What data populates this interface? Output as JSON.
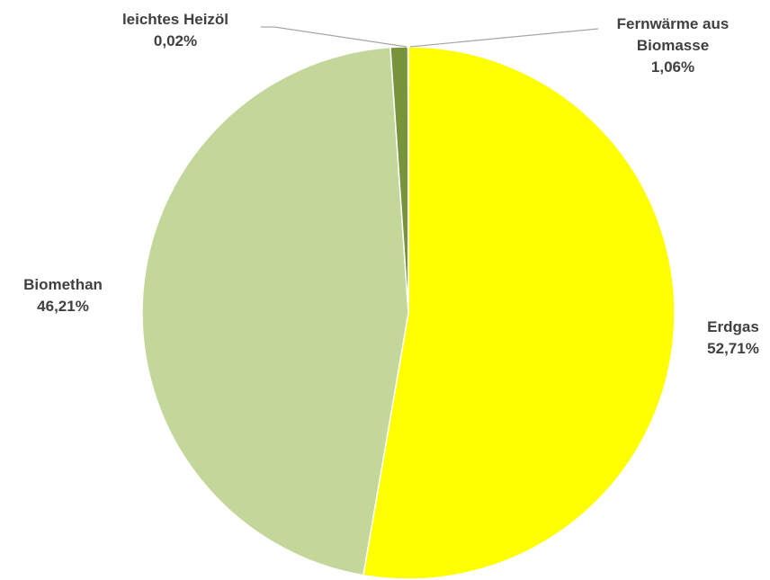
{
  "chart_data": {
    "type": "pie",
    "categories": [
      "Erdgas",
      "Biomethan",
      "Fernwärme aus Biomasse",
      "leichtes Heizöl"
    ],
    "values": [
      52.71,
      46.21,
      1.06,
      0.02
    ],
    "value_labels": [
      "52,71%",
      "46,21%",
      "1,06%",
      "0,02%"
    ],
    "colors": [
      "#ffff00",
      "#c4d79b",
      "#77933c",
      "#4f6228"
    ]
  }
}
